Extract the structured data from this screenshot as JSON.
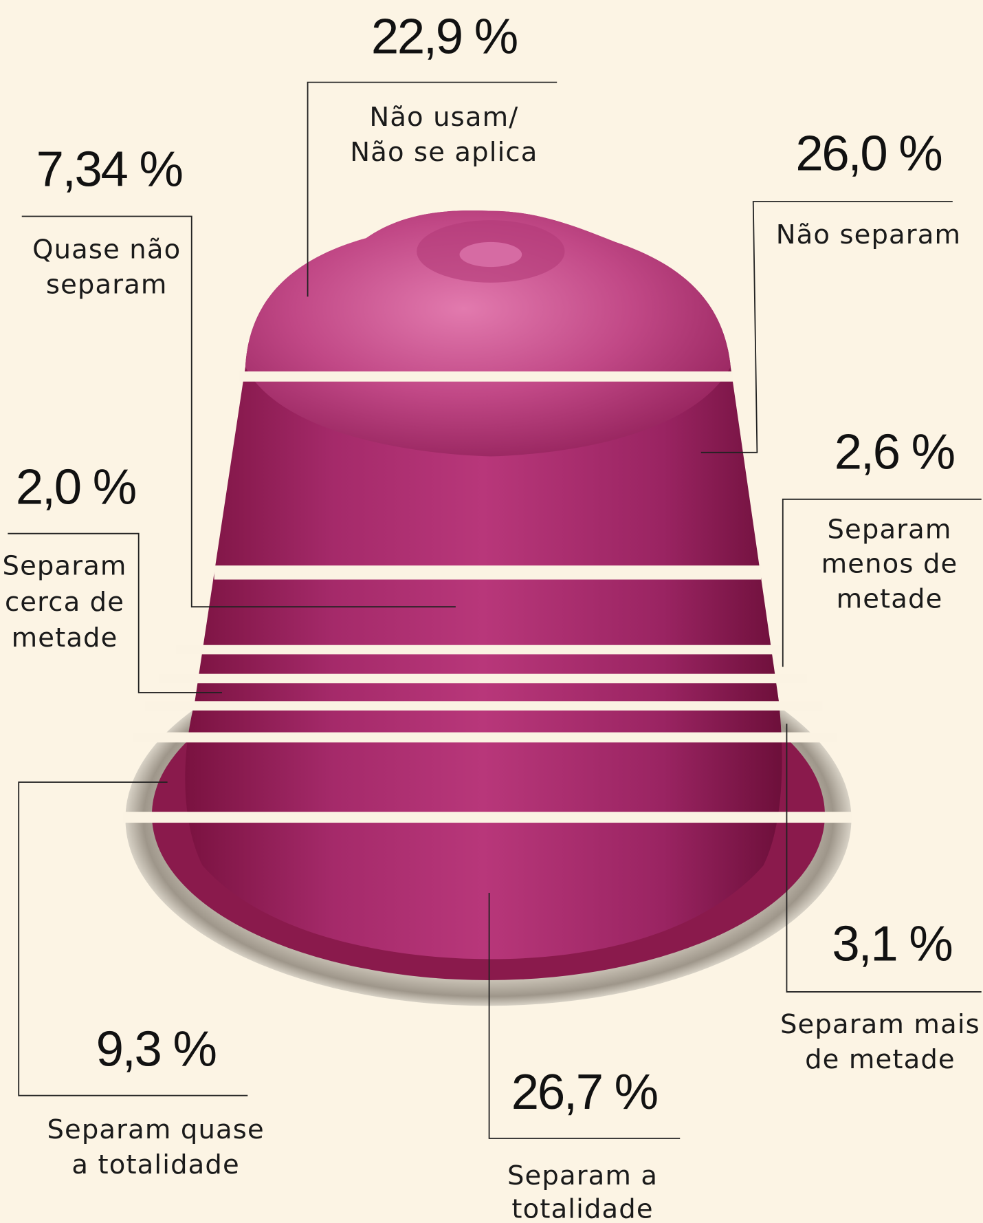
{
  "items": [
    {
      "value": "22,9 %",
      "label": [
        "Não usam/",
        "Não se aplica"
      ]
    },
    {
      "value": "7,34 %",
      "label": [
        "Quase não",
        "separam"
      ]
    },
    {
      "value": "26,0 %",
      "label": [
        "Não separam"
      ]
    },
    {
      "value": "2,6 %",
      "label": [
        "Separam",
        "menos de",
        "metade"
      ]
    },
    {
      "value": "2,0 %",
      "label": [
        "Separam",
        "cerca de",
        "metade"
      ]
    },
    {
      "value": "3,1 %",
      "label": [
        "Separam mais",
        "de metade"
      ]
    },
    {
      "value": "9,3 %",
      "label": [
        "Separam quase",
        "a totalidade"
      ]
    },
    {
      "value": "26,7 %",
      "label": [
        "Separam a",
        "totalidade"
      ]
    }
  ]
}
